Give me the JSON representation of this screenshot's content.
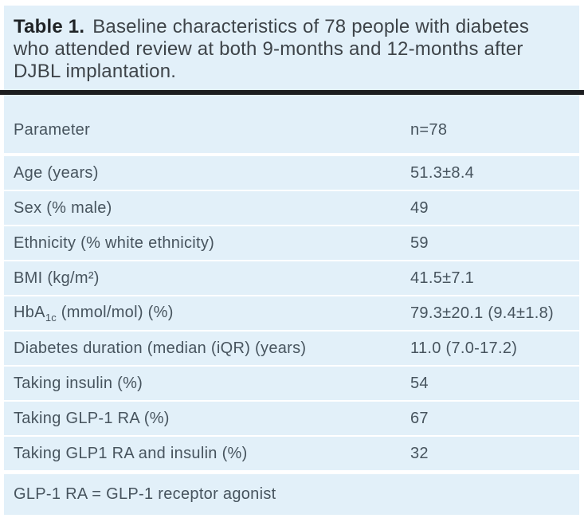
{
  "colors": {
    "panel_background": "#e2f0f9",
    "rule": "#1d1e20",
    "body_text": "#47545e",
    "title_text": "#3e4449",
    "title_label_text": "#1f2326",
    "divider": "#ffffff"
  },
  "title": {
    "label": "Table 1.",
    "line1": "Baseline characteristics of 78 people with diabetes",
    "line2": "who attended review at both 9-months and 12-months after",
    "line3": "DJBL implantation."
  },
  "table": {
    "header": {
      "param": "Parameter",
      "value": "n=78"
    },
    "rows": [
      {
        "param": "Age (years)",
        "value": "51.3±8.4"
      },
      {
        "param": "Sex (% male)",
        "value": "49"
      },
      {
        "param": "Ethnicity (% white ethnicity)",
        "value": "59"
      },
      {
        "param": "BMI (kg/m²)",
        "value": "41.5±7.1"
      },
      {
        "param_pre": "HbA",
        "param_sub": "1c",
        "param_post": " (mmol/mol) (%)",
        "value": "79.3±20.1 (9.4±1.8)"
      },
      {
        "param": "Diabetes duration (median (iQR) (years)",
        "value": "11.0 (7.0-17.2)"
      },
      {
        "param": "Taking insulin (%)",
        "value": "54"
      },
      {
        "param": "Taking GLP-1 RA (%)",
        "value": "67"
      },
      {
        "param": "Taking GLP1 RA and insulin (%)",
        "value": "32"
      }
    ],
    "footnote": "GLP-1 RA = GLP-1 receptor agonist"
  }
}
